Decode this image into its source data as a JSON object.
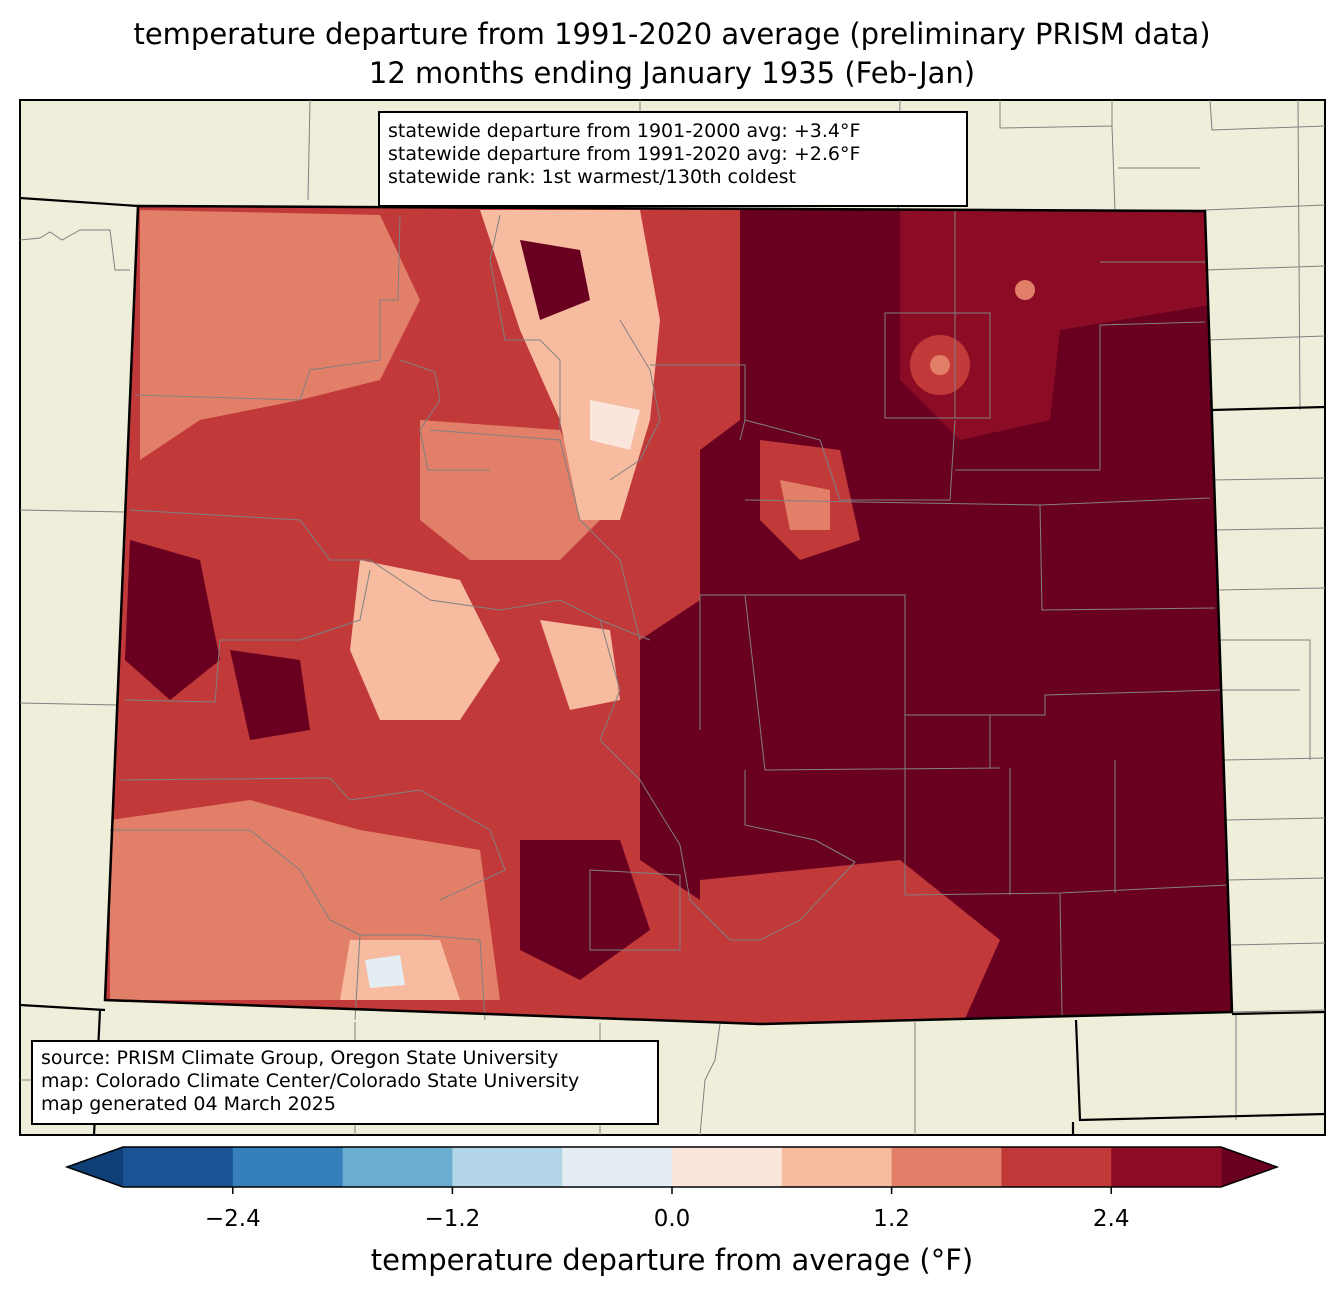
{
  "title": {
    "line1": "temperature departure from 1991-2020 average (preliminary PRISM data)",
    "line2": "12 months ending January 1935 (Feb-Jan)"
  },
  "stats": {
    "line1": "statewide departure from 1901-2000 avg: +3.4°F",
    "line2": "statewide departure from 1991-2020 avg: +2.6°F",
    "line3": "statewide rank: 1st warmest/130th coldest"
  },
  "source": {
    "line1": "source: PRISM Climate Group, Oregon State University",
    "line2": "map: Colorado Climate Center/Colorado State University",
    "line3": "map generated 04 March 2025"
  },
  "colors": {
    "land": "#efeedb",
    "boundary": "#000000",
    "county_lines": "#808080",
    "bins": [
      "#0e3f77",
      "#1a5494",
      "#3580bb",
      "#6badd0",
      "#b2d5e7",
      "#e4edf3",
      "#fae6dc",
      "#f7bba0",
      "#e27f69",
      "#c13939",
      "#8d0c25",
      "#6a0020"
    ]
  },
  "colorbar": {
    "label": "temperature departure from average (°F)",
    "ticks": [
      "−2.4",
      "−1.2",
      "0.0",
      "1.2",
      "2.4"
    ],
    "tick_values": [
      -2.4,
      -1.2,
      0.0,
      1.2,
      2.4
    ],
    "levels": [
      -3.0,
      -2.4,
      -1.8,
      -1.2,
      -0.6,
      0.0,
      0.6,
      1.2,
      1.8,
      2.4,
      3.0
    ],
    "extend": "both"
  }
}
